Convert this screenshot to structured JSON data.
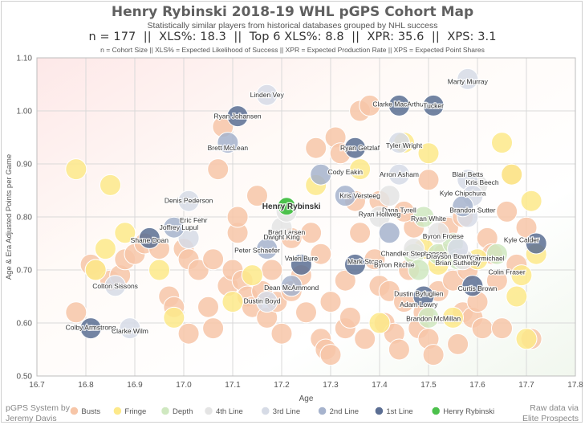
{
  "header": {
    "title": "Henry Rybinski 2018-19 WHL pGPS Cohort Map",
    "subtitle": "Statistically similar players from historical databases grouped by NHL success",
    "stats": "n = 177  ||  XLS%: 18.3  ||  Top 6 XLS%: 8.8  ||  XPR: 35.6  ||  XPS: 3.1",
    "definitions": "n = Cohort Size || XLS% = Expected Likelihood of Success || XPR = Expected Production Rate || XPS = Expected Point Shares"
  },
  "credits": {
    "left_line1": "pGPS System by",
    "left_line2": "Jeremy Davis",
    "right_line1": "Raw data via",
    "right_line2": "Elite Prospects"
  },
  "chart_data": {
    "type": "scatter",
    "title": "Henry Rybinski 2018-19 WHL pGPS Cohort Map",
    "xlabel": "Age",
    "ylabel": "Age & Era Adjusted Points per Game",
    "xlim": [
      16.7,
      17.8
    ],
    "ylim": [
      0.5,
      1.1
    ],
    "xticks": [
      "16.7",
      "16.8",
      "16.9",
      "17.0",
      "17.1",
      "17.2",
      "17.3",
      "17.4",
      "17.5",
      "17.6",
      "17.7",
      "17.8"
    ],
    "yticks": [
      "0.50",
      "0.60",
      "0.70",
      "0.80",
      "0.90",
      "1.00",
      "1.10"
    ],
    "grid": true,
    "legend_position": "bottom",
    "series": [
      {
        "name": "Busts",
        "color": "#f7c6a8",
        "points": [
          [
            16.78,
            0.62
          ],
          [
            16.81,
            0.71
          ],
          [
            16.82,
            0.7
          ],
          [
            16.85,
            0.68
          ],
          [
            16.87,
            0.69
          ],
          [
            16.88,
            0.72
          ],
          [
            16.9,
            0.73
          ],
          [
            16.92,
            0.75
          ],
          [
            16.95,
            0.74
          ],
          [
            16.97,
            0.65
          ],
          [
            16.98,
            0.63
          ],
          [
            17.0,
            0.74
          ],
          [
            17.01,
            0.72
          ],
          [
            17.01,
            0.58
          ],
          [
            17.03,
            0.7
          ],
          [
            17.05,
            0.63
          ],
          [
            17.06,
            0.72
          ],
          [
            17.06,
            0.59
          ],
          [
            17.07,
            0.89
          ],
          [
            17.08,
            0.97
          ],
          [
            17.09,
            0.67
          ],
          [
            17.1,
            0.7
          ],
          [
            17.11,
            0.77
          ],
          [
            17.11,
            0.8
          ],
          [
            17.12,
            0.68
          ],
          [
            17.13,
            0.65
          ],
          [
            17.14,
            0.63
          ],
          [
            17.16,
            0.66
          ],
          [
            17.17,
            0.61
          ],
          [
            17.18,
            0.7
          ],
          [
            17.19,
            0.64
          ],
          [
            17.2,
            0.58
          ],
          [
            17.22,
            0.66
          ],
          [
            17.24,
            0.69
          ],
          [
            17.25,
            0.62
          ],
          [
            17.26,
            0.77
          ],
          [
            17.27,
            0.93
          ],
          [
            17.28,
            0.57
          ],
          [
            17.29,
            0.55
          ],
          [
            17.3,
            0.54
          ],
          [
            17.3,
            0.64
          ],
          [
            17.31,
            0.95
          ],
          [
            17.32,
            0.92
          ],
          [
            17.33,
            0.59
          ],
          [
            17.34,
            0.61
          ],
          [
            17.35,
            0.83
          ],
          [
            17.36,
            1.0
          ],
          [
            17.36,
            0.77
          ],
          [
            17.37,
            0.57
          ],
          [
            17.38,
            1.01
          ],
          [
            17.39,
            0.72
          ],
          [
            17.4,
            0.67
          ],
          [
            17.41,
            0.6
          ],
          [
            17.42,
            0.66
          ],
          [
            17.43,
            0.58
          ],
          [
            17.44,
            0.55
          ],
          [
            17.45,
            0.64
          ],
          [
            17.46,
            0.7
          ],
          [
            17.47,
            0.78
          ],
          [
            17.48,
            0.59
          ],
          [
            17.49,
            0.62
          ],
          [
            17.5,
            0.57
          ],
          [
            17.51,
            0.54
          ],
          [
            17.52,
            0.66
          ],
          [
            17.53,
            0.73
          ],
          [
            17.54,
            0.78
          ],
          [
            17.55,
            0.68
          ],
          [
            17.56,
            0.56
          ],
          [
            17.57,
            0.62
          ],
          [
            17.58,
            0.7
          ],
          [
            17.59,
            0.61
          ],
          [
            17.6,
            0.64
          ],
          [
            17.61,
            0.59
          ],
          [
            17.62,
            0.76
          ],
          [
            17.63,
            0.73
          ],
          [
            17.64,
            0.68
          ],
          [
            17.65,
            0.59
          ],
          [
            17.66,
            0.81
          ],
          [
            17.67,
            0.88
          ],
          [
            17.68,
            0.71
          ],
          [
            17.7,
            0.78
          ],
          [
            17.71,
            0.57
          ],
          [
            17.45,
            0.81
          ],
          [
            17.5,
            0.87
          ],
          [
            17.4,
            0.83
          ],
          [
            17.15,
            0.84
          ],
          [
            17.22,
            0.76
          ],
          [
            17.33,
            0.68
          ],
          [
            17.28,
            0.73
          ],
          [
            17.57,
            0.8
          ]
        ]
      },
      {
        "name": "Fringe",
        "color": "#fde98a",
        "points": [
          [
            16.78,
            0.89
          ],
          [
            16.85,
            0.86
          ],
          [
            16.82,
            0.7
          ],
          [
            16.84,
            0.74
          ],
          [
            16.88,
            0.77
          ],
          [
            16.95,
            0.7
          ],
          [
            16.98,
            0.61
          ],
          [
            17.1,
            0.64
          ],
          [
            17.14,
            0.69
          ],
          [
            17.27,
            0.86
          ],
          [
            17.36,
            0.89
          ],
          [
            17.4,
            0.6
          ],
          [
            17.45,
            0.94
          ],
          [
            17.49,
            0.74
          ],
          [
            17.5,
            0.92
          ],
          [
            17.52,
            0.71
          ],
          [
            17.55,
            0.61
          ],
          [
            17.6,
            0.72
          ],
          [
            17.65,
            0.94
          ],
          [
            17.67,
            0.88
          ],
          [
            17.68,
            0.65
          ],
          [
            17.69,
            0.69
          ],
          [
            17.71,
            0.83
          ],
          [
            17.72,
            0.73
          ],
          [
            17.7,
            0.57
          ]
        ]
      },
      {
        "name": "Depth",
        "color": "#cfe8c0",
        "points": [
          [
            17.47,
            0.73
          ],
          [
            17.48,
            0.7
          ],
          [
            17.49,
            0.8
          ],
          [
            17.5,
            0.61
          ],
          [
            17.52,
            0.73
          ],
          [
            17.55,
            0.75
          ],
          [
            17.56,
            0.72
          ],
          [
            17.64,
            0.73
          ]
        ]
      },
      {
        "name": "4th Line",
        "color": "#e4e4e4",
        "points": [
          [
            17.2,
            0.78
          ],
          [
            17.21,
            0.81
          ],
          [
            17.4,
            0.8
          ],
          [
            17.42,
            0.84
          ],
          [
            17.47,
            0.74
          ],
          [
            17.52,
            0.77
          ],
          [
            17.57,
            0.72
          ],
          [
            17.6,
            0.86
          ]
        ]
      },
      {
        "name": "3rd Line",
        "color": "#d6dbe6",
        "points": [
          [
            16.86,
            0.67
          ],
          [
            16.89,
            0.59
          ],
          [
            17.01,
            0.83
          ],
          [
            17.01,
            0.76
          ],
          [
            17.17,
            0.64
          ],
          [
            17.17,
            1.03
          ],
          [
            17.44,
            0.94
          ],
          [
            17.44,
            0.88
          ],
          [
            17.58,
            1.06
          ],
          [
            17.58,
            0.87
          ],
          [
            17.59,
            0.84
          ],
          [
            17.58,
            0.8
          ],
          [
            17.56,
            0.74
          ]
        ]
      },
      {
        "name": "2nd Line",
        "color": "#a6b3cd",
        "points": [
          [
            16.98,
            0.78
          ],
          [
            17.09,
            0.94
          ],
          [
            17.17,
            0.74
          ],
          [
            17.28,
            0.88
          ],
          [
            17.33,
            0.84
          ],
          [
            17.22,
            0.67
          ],
          [
            17.42,
            0.77
          ],
          [
            17.57,
            0.82
          ]
        ]
      },
      {
        "name": "1st Line",
        "color": "#5b6e93",
        "points": [
          [
            16.81,
            0.59
          ],
          [
            16.93,
            0.76
          ],
          [
            17.11,
            0.99
          ],
          [
            17.24,
            0.71
          ],
          [
            17.35,
            0.71
          ],
          [
            17.35,
            0.93
          ],
          [
            17.44,
            1.01
          ],
          [
            17.51,
            1.01
          ],
          [
            17.49,
            0.65
          ],
          [
            17.59,
            0.67
          ],
          [
            17.72,
            0.75
          ]
        ]
      },
      {
        "name": "Henry Rybinski",
        "color": "#4cc14c",
        "points": [
          [
            17.21,
            0.82
          ]
        ]
      }
    ],
    "annotations": [
      {
        "text": "Marty Murray",
        "x": 17.58,
        "y": 1.055
      },
      {
        "text": "Linden Vey",
        "x": 17.17,
        "y": 1.03
      },
      {
        "text": "Clarke MacArthur",
        "x": 17.44,
        "y": 1.013
      },
      {
        "text": "Tucker",
        "x": 17.51,
        "y": 1.01
      },
      {
        "text": "Ryan Johansen",
        "x": 17.11,
        "y": 0.99
      },
      {
        "text": "Ryan Getzlaf",
        "x": 17.36,
        "y": 0.93
      },
      {
        "text": "Tyler Wright",
        "x": 17.45,
        "y": 0.935
      },
      {
        "text": "Brett McLean",
        "x": 17.09,
        "y": 0.93
      },
      {
        "text": "Cody Eakin",
        "x": 17.33,
        "y": 0.885
      },
      {
        "text": "Arron Asham",
        "x": 17.44,
        "y": 0.88
      },
      {
        "text": "Blair Betts",
        "x": 17.58,
        "y": 0.88
      },
      {
        "text": "Kris Beech",
        "x": 17.61,
        "y": 0.865
      },
      {
        "text": "Kris Versteeg",
        "x": 17.36,
        "y": 0.84
      },
      {
        "text": "Kyle Chipchura",
        "x": 17.57,
        "y": 0.845
      },
      {
        "text": "Denis Pederson",
        "x": 17.01,
        "y": 0.831
      },
      {
        "text": "Dana Tyrell",
        "x": 17.44,
        "y": 0.813
      },
      {
        "text": "Ryan Hollweg",
        "x": 17.4,
        "y": 0.805
      },
      {
        "text": "Brandon Sutter",
        "x": 17.59,
        "y": 0.813
      },
      {
        "text": "Ryan White",
        "x": 17.5,
        "y": 0.797
      },
      {
        "text": "Eric Fehr",
        "x": 17.02,
        "y": 0.794
      },
      {
        "text": "Joffrey Lupul",
        "x": 16.99,
        "y": 0.78
      },
      {
        "text": "Henry Rybinski",
        "x": 17.22,
        "y": 0.82
      },
      {
        "text": "Brad Larsen",
        "x": 17.21,
        "y": 0.771
      },
      {
        "text": "Dwight King",
        "x": 17.2,
        "y": 0.762
      },
      {
        "text": "Byron Froese",
        "x": 17.53,
        "y": 0.764
      },
      {
        "text": "Shane Doan",
        "x": 16.93,
        "y": 0.756
      },
      {
        "text": "Kyle Calder",
        "x": 17.69,
        "y": 0.757
      },
      {
        "text": "Peter Schaefer",
        "x": 17.15,
        "y": 0.737
      },
      {
        "text": "Chandler Stephenson",
        "x": 17.47,
        "y": 0.731
      },
      {
        "text": "Valeri Bure",
        "x": 17.24,
        "y": 0.722
      },
      {
        "text": "Mark Stone",
        "x": 17.37,
        "y": 0.716
      },
      {
        "text": "Drayson Bowman",
        "x": 17.55,
        "y": 0.726
      },
      {
        "text": "Carmichael",
        "x": 17.62,
        "y": 0.722
      },
      {
        "text": "Brian Sutherby",
        "x": 17.56,
        "y": 0.714
      },
      {
        "text": "Byron Ritchie",
        "x": 17.43,
        "y": 0.71
      },
      {
        "text": "Colin Fraser",
        "x": 17.66,
        "y": 0.696
      },
      {
        "text": "Colton Sissons",
        "x": 16.86,
        "y": 0.67
      },
      {
        "text": "Dean McAmmond",
        "x": 17.22,
        "y": 0.667
      },
      {
        "text": "Curtis Brown",
        "x": 17.6,
        "y": 0.665
      },
      {
        "text": "Dustin Byfuglien",
        "x": 17.48,
        "y": 0.655
      },
      {
        "text": "Dustin Boyd",
        "x": 17.16,
        "y": 0.642
      },
      {
        "text": "Adam Lowry",
        "x": 17.48,
        "y": 0.635
      },
      {
        "text": "Brandon McMillan",
        "x": 17.51,
        "y": 0.608
      },
      {
        "text": "Colby Armstrong",
        "x": 16.81,
        "y": 0.592
      },
      {
        "text": "Clarke Wilm",
        "x": 16.89,
        "y": 0.585
      }
    ]
  }
}
